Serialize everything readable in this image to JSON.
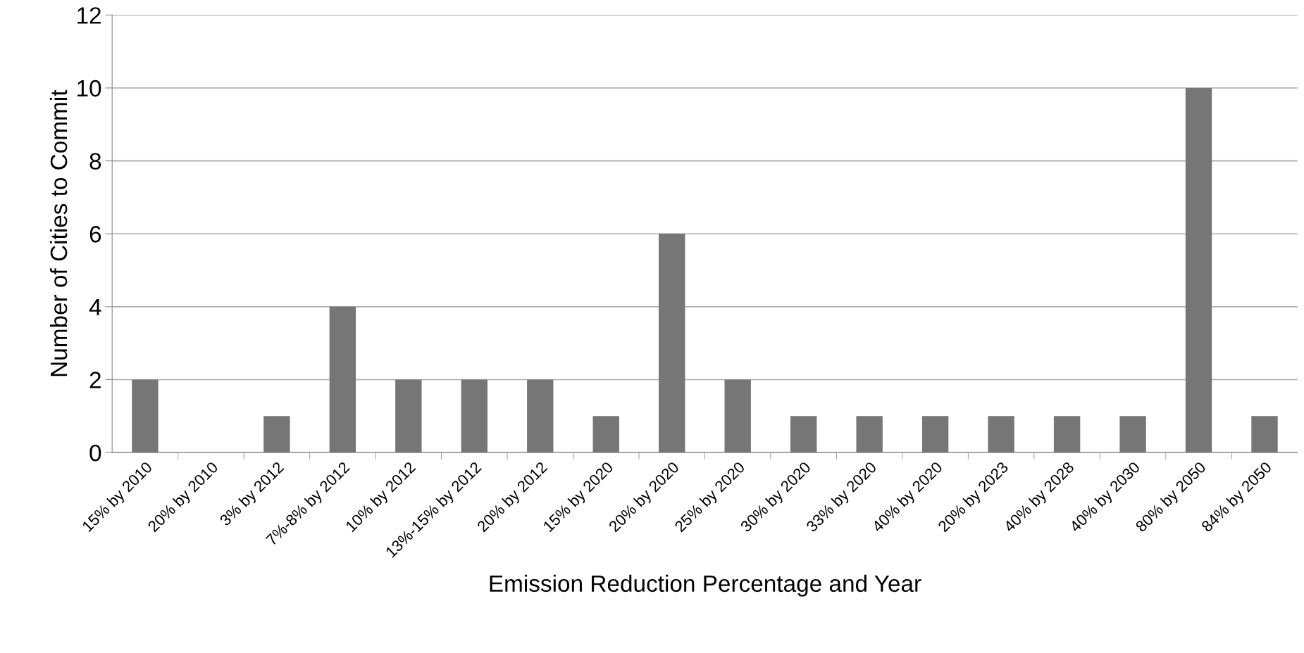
{
  "chart_data": {
    "type": "bar",
    "xlabel": "Emission Reduction Percentage and Year",
    "ylabel": "Number of Cities to Commit",
    "categories": [
      "15% by 2010",
      "20% by 2010",
      "3% by 2012",
      "7%-8% by 2012",
      "10% by 2012",
      "13%-15% by 2012",
      "20% by 2012",
      "15% by 2020",
      "20% by 2020",
      "25% by 2020",
      "30% by 2020",
      "33% by 2020",
      "40% by 2020",
      "20% by 2023",
      "40% by 2028",
      "40% by 2030",
      "80% by 2050",
      "84% by 2050"
    ],
    "values": [
      2,
      0,
      1,
      4,
      2,
      2,
      2,
      1,
      6,
      2,
      1,
      1,
      1,
      1,
      1,
      1,
      10,
      1
    ],
    "color": "#767676",
    "ylim": [
      0,
      12
    ],
    "yticks": [
      0,
      2,
      4,
      6,
      8,
      10,
      12
    ],
    "grid": "y",
    "legend": false
  }
}
